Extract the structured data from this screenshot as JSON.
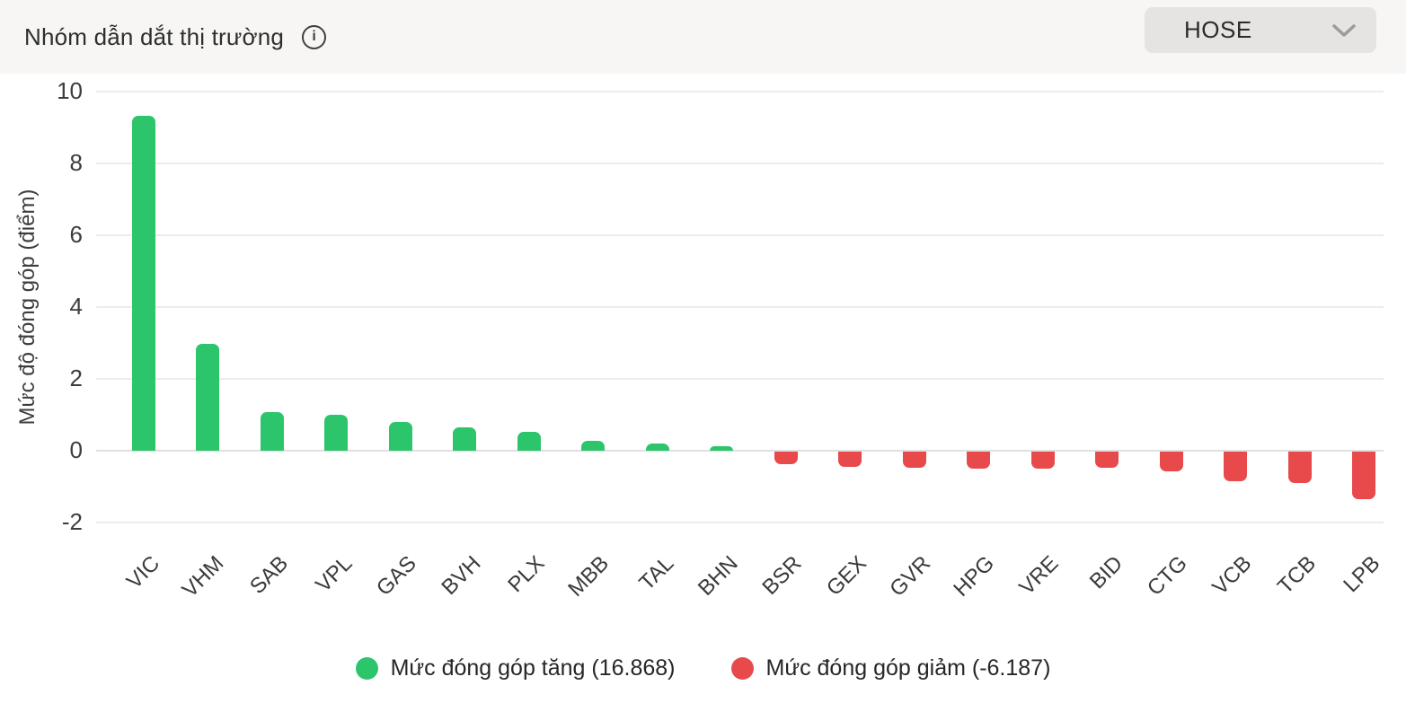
{
  "header": {
    "title": "Nhóm dẫn dắt thị trường",
    "info_icon": "info-circle-icon",
    "exchange_dropdown": {
      "value": "HOSE",
      "icon": "chevron-down-icon"
    }
  },
  "chart_data": {
    "type": "bar",
    "title": "Nhóm dẫn dắt thị trường",
    "xlabel": "",
    "ylabel": "Mức độ đóng góp (điểm)",
    "categories": [
      "VIC",
      "VHM",
      "SAB",
      "VPL",
      "GAS",
      "BVH",
      "PLX",
      "MBB",
      "TAL",
      "BHN",
      "BSR",
      "GEX",
      "GVR",
      "HPG",
      "VRE",
      "BID",
      "CTG",
      "VCB",
      "TCB",
      "LPB"
    ],
    "values": [
      9.32,
      2.97,
      1.08,
      1.0,
      0.79,
      0.64,
      0.53,
      0.28,
      0.19,
      0.13,
      -0.36,
      -0.42,
      -0.44,
      -0.48,
      -0.48,
      -0.46,
      -0.56,
      -0.82,
      -0.88,
      -1.32
    ],
    "yticks": [
      10,
      8,
      6,
      4,
      2,
      0,
      -2
    ],
    "ylim": [
      -2.7,
      10.5
    ],
    "grid": true,
    "bar_colors": {
      "positive": "#2cc56c",
      "negative": "#e84a4c"
    },
    "legend_position": "bottom",
    "legend": [
      {
        "label": "Mức đóng góp tăng (16.868)",
        "color": "#2cc56c"
      },
      {
        "label": "Mức đóng góp giảm (-6.187)",
        "color": "#e84a4c"
      }
    ]
  }
}
